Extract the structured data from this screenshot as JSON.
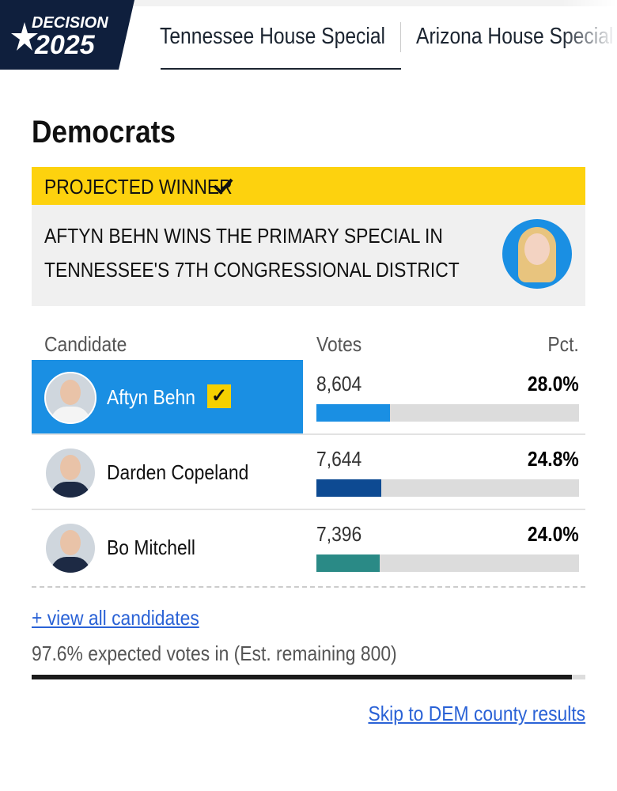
{
  "header": {
    "logo_top": "DECISION",
    "logo_bottom": "2025",
    "tabs": [
      "Tennessee House Special",
      "Arizona House Special"
    ]
  },
  "section": {
    "title": "Democrats",
    "banner": "PROJECTED WINNER",
    "headline_lines": [
      "AFTYN BEHN WINS THE PRIMARY SPECIAL IN",
      "TENNESSEE'S 7TH CONGRESSIONAL DISTRICT"
    ]
  },
  "table": {
    "columns": [
      "Candidate",
      "Votes",
      "Pct."
    ],
    "rows": [
      {
        "name": "Aftyn Behn",
        "votes": "8,604",
        "pct": {
          "value": 28.0,
          "label": "28.0%"
        },
        "color": "#1a8fe3",
        "winner": true
      },
      {
        "name": "Darden Copeland",
        "votes": "7,644",
        "pct": {
          "value": 24.8,
          "label": "24.8%"
        },
        "color": "#0d4a92",
        "winner": false
      },
      {
        "name": "Bo Mitchell",
        "votes": "7,396",
        "pct": {
          "value": 24.0,
          "label": "24.0%"
        },
        "color": "#2a8a86",
        "winner": false
      }
    ]
  },
  "footer": {
    "view_all": "+ view all candidates",
    "expected_text": "97.6% expected votes in (Est. remaining 800)",
    "expected_pct": 97.6,
    "county_link": "Skip to DEM county results"
  }
}
